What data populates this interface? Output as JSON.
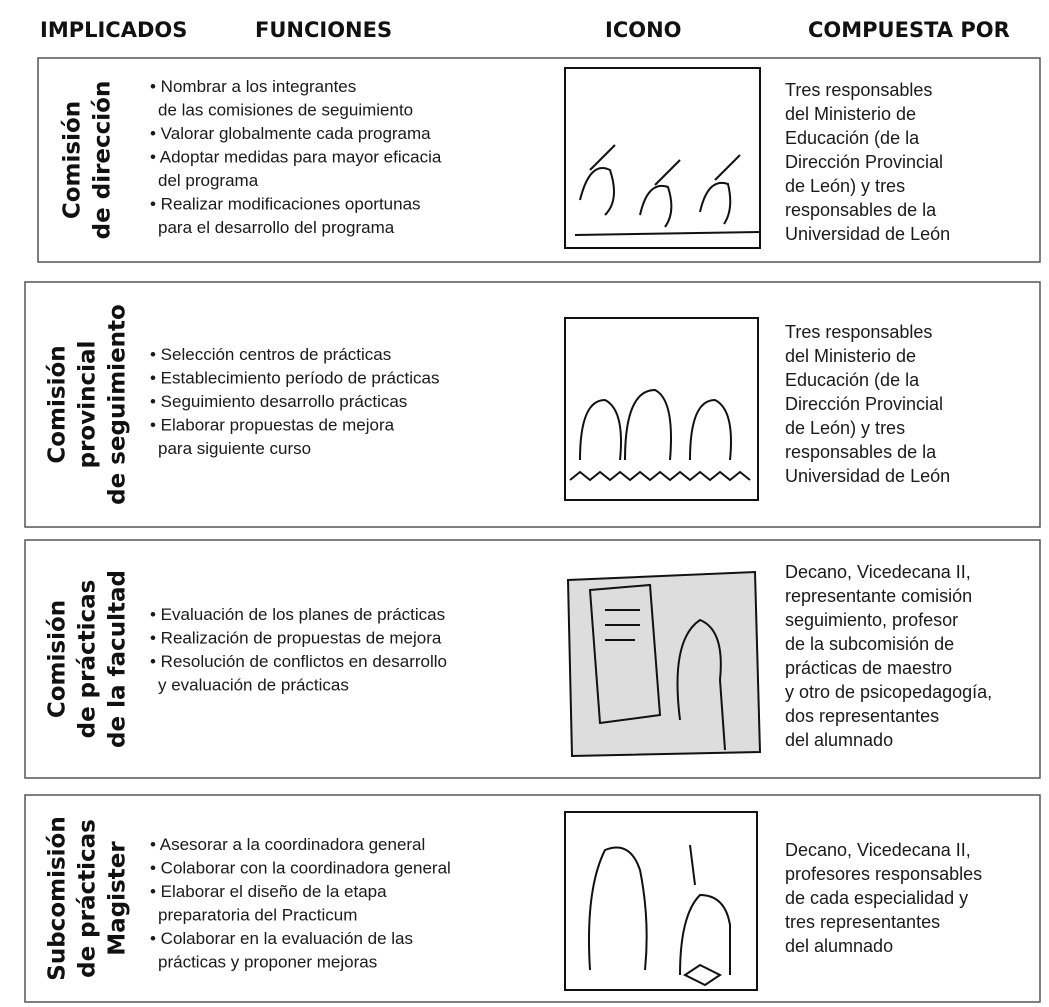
{
  "table": {
    "headers": [
      "IMPLICADOS",
      "FUNCIONES",
      "ICONO",
      "COMPUESTA POR"
    ],
    "rows": [
      {
        "implicados": [
          "Comisión",
          "de dirección"
        ],
        "funciones": [
          "• Nombrar a los integrantes",
          "de las comisiones de seguimiento",
          "• Valorar globalmente cada programa",
          "• Adoptar medidas para mayor eficacia",
          "del programa",
          "• Realizar modificaciones oportunas",
          "para el desarrollo del programa"
        ],
        "compuesta": [
          "Tres responsables",
          "del Ministerio de",
          "Educación (de la",
          "Dirección Provincial",
          "de León) y tres",
          "responsables de la",
          "Universidad de León"
        ]
      },
      {
        "implicados": [
          "Comisión",
          "provincial",
          "de seguimiento"
        ],
        "funciones": [
          "• Selección centros de prácticas",
          "• Establecimiento período de prácticas",
          "• Seguimiento desarrollo prácticas",
          "• Elaborar propuestas de mejora",
          "para siguiente curso"
        ],
        "compuesta": [
          "Tres responsables",
          "del Ministerio de",
          "Educación (de la",
          "Dirección Provincial",
          "de León) y tres",
          "responsables de la",
          "Universidad de León"
        ]
      },
      {
        "implicados": [
          "Comisión",
          "de prácticas",
          "de la facultad"
        ],
        "funciones": [
          "• Evaluación de los planes de prácticas",
          "• Realización de propuestas de mejora",
          "• Resolución de conflictos en desarrollo",
          "y evaluación de prácticas"
        ],
        "compuesta": [
          "Decano, Vicedecana II,",
          "representante comisión",
          "seguimiento, profesor",
          "de la subcomisión de",
          "prácticas de maestro",
          "y otro de psicopedagogía,",
          "dos representantes",
          "del alumnado"
        ]
      },
      {
        "implicados": [
          "Subcomisión",
          "de prácticas",
          "Magister"
        ],
        "funciones": [
          "• Asesorar a la coordinadora general",
          "• Colaborar con la coordinadora general",
          "• Elaborar el diseño de la etapa",
          "preparatoria del Practicum",
          "• Colaborar en la evaluación de las",
          "prácticas y proponer mejoras"
        ],
        "compuesta": [
          "Decano, Vicedecana II,",
          "profesores responsables",
          "de cada especialidad y",
          "tres representantes",
          "del alumnado"
        ]
      }
    ]
  }
}
